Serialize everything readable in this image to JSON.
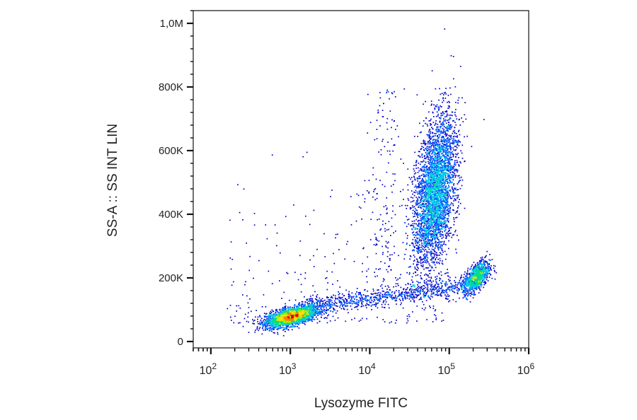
{
  "chart_data": {
    "type": "scatter",
    "subtype": "flow-cytometry density dot plot",
    "xlabel": "Lysozyme FITC",
    "ylabel": "SS-A :: SS INT LIN",
    "x_scale": "log",
    "xlim": [
      60,
      1000000
    ],
    "ylim": [
      -20000,
      1040000
    ],
    "x_ticks": [
      {
        "value": 100,
        "base": "10",
        "exp": "2"
      },
      {
        "value": 1000,
        "base": "10",
        "exp": "3"
      },
      {
        "value": 10000,
        "base": "10",
        "exp": "4"
      },
      {
        "value": 100000,
        "base": "10",
        "exp": "5"
      },
      {
        "value": 1000000,
        "base": "10",
        "exp": "6"
      }
    ],
    "y_ticks": [
      {
        "value": 0,
        "label": "0"
      },
      {
        "value": 200000,
        "label": "200K"
      },
      {
        "value": 400000,
        "label": "400K"
      },
      {
        "value": 600000,
        "label": "600K"
      },
      {
        "value": 800000,
        "label": "800K"
      },
      {
        "value": 1000000,
        "label": "1,0M"
      }
    ],
    "grid": false,
    "color_scale": [
      "#0000c8",
      "#0060ff",
      "#00c8e6",
      "#00e080",
      "#a0f000",
      "#ffe000",
      "#ff8000",
      "#e00000"
    ],
    "populations": [
      {
        "center_x": 1000,
        "center_y": 80000,
        "spread_log_x": 0.16,
        "spread_y": 16000,
        "peak_density": "very high"
      },
      {
        "center_x": 65000,
        "center_y": 470000,
        "spread_log_x": 0.12,
        "spread_y": 120000,
        "peak_density": "high"
      },
      {
        "center_x": 220000,
        "center_y": 205000,
        "spread_log_x": 0.08,
        "spread_y": 25000,
        "peak_density": "medium"
      }
    ],
    "bridge": {
      "from_x": 1500,
      "from_y": 110000,
      "to_x": 180000,
      "to_y": 180000,
      "density": "low"
    }
  }
}
